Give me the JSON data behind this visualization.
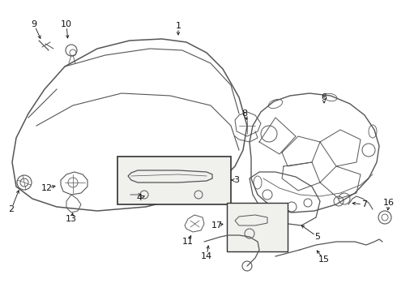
{
  "bg_color": "#ffffff",
  "line_color": "#555555",
  "text_color": "#111111",
  "fig_w": 4.9,
  "fig_h": 3.6,
  "dpi": 100
}
